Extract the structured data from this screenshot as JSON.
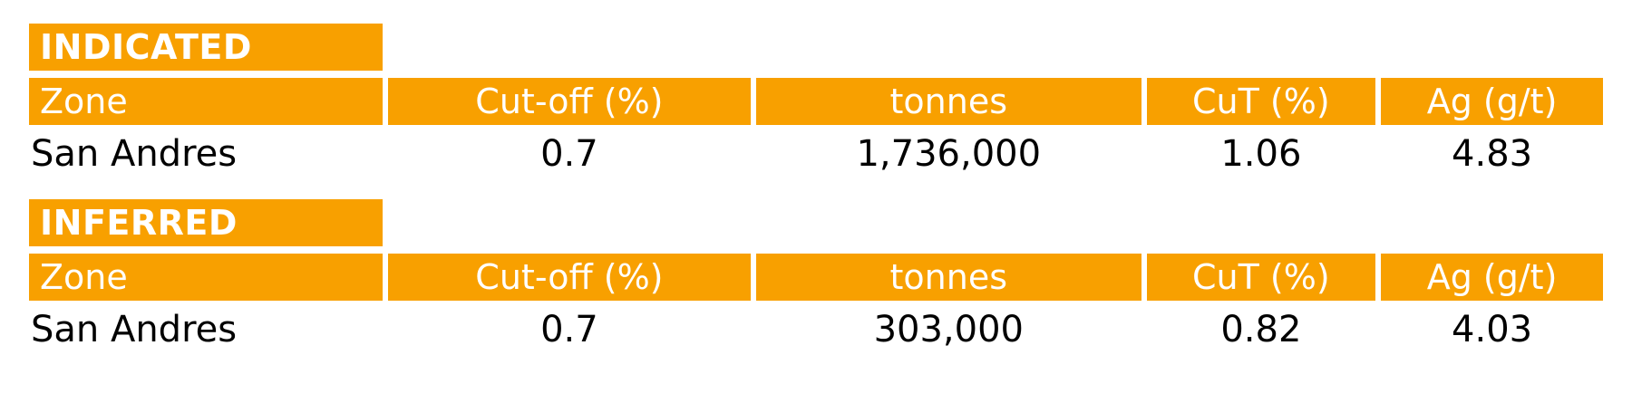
{
  "colors": {
    "accent": "#F8A000",
    "header_text": "#FFFFFF",
    "body_text": "#000000"
  },
  "sections": [
    {
      "title": "INDICATED",
      "headers": [
        "Zone",
        "Cut-off (%)",
        "tonnes",
        "CuT (%)",
        "Ag (g/t)"
      ],
      "rows": [
        {
          "zone": "San Andres",
          "cutoff": "0.7",
          "tonnes": "1,736,000",
          "cut_pct": "1.06",
          "ag_gpt": "4.83"
        }
      ]
    },
    {
      "title": "INFERRED",
      "headers": [
        "Zone",
        "Cut-off (%)",
        "tonnes",
        "CuT (%)",
        "Ag (g/t)"
      ],
      "rows": [
        {
          "zone": "San Andres",
          "cutoff": "0.7",
          "tonnes": "303,000",
          "cut_pct": "0.82",
          "ag_gpt": "4.03"
        }
      ]
    }
  ]
}
